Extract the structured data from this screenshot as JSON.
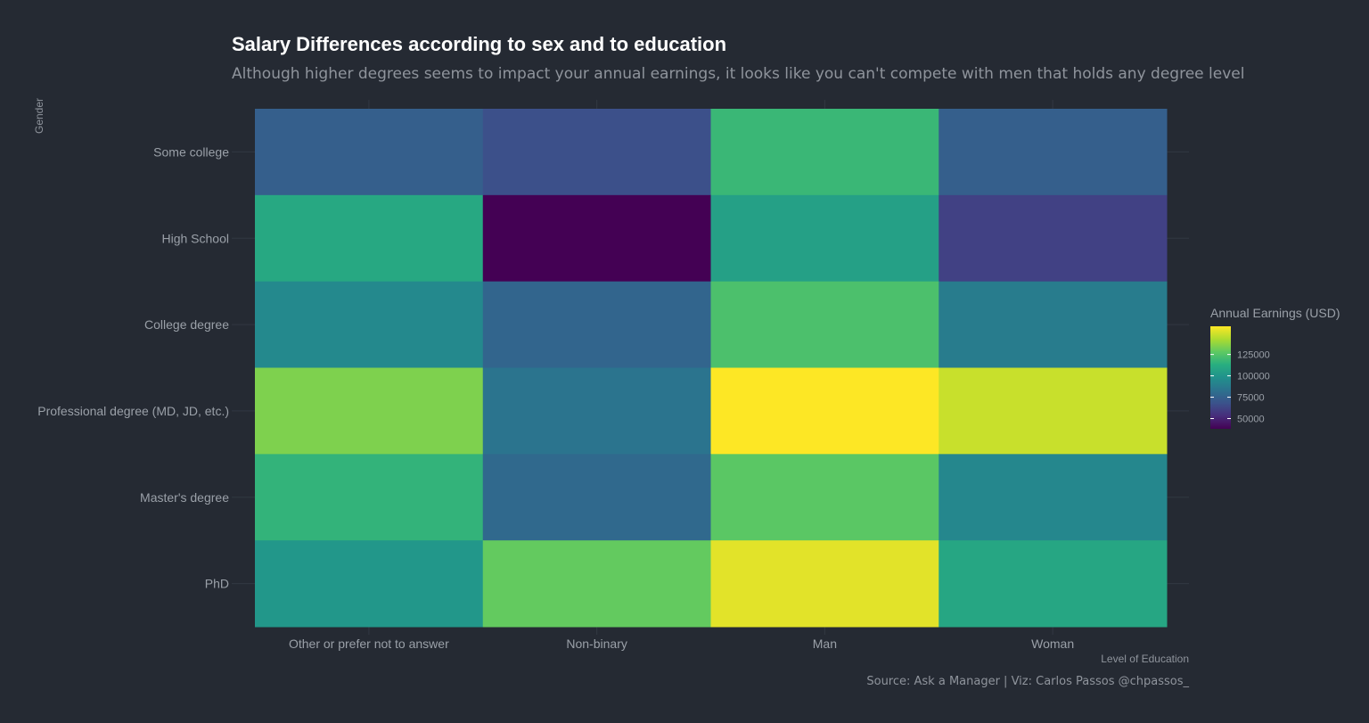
{
  "chart_data": {
    "type": "heatmap",
    "title": "Salary Differences according to sex and to education",
    "subtitle": "Although higher degrees seems to impact your annual earnings, it looks like you can't compete with men that holds any degree level",
    "xlabel": "Level of Education",
    "ylabel": "Gender",
    "x_categories": [
      "Other or prefer not to answer",
      "Non-binary",
      "Man",
      "Woman"
    ],
    "y_categories": [
      "Some college",
      "High School",
      "College degree",
      "Professional degree (MD, JD, etc.)",
      "Master's degree",
      "PhD"
    ],
    "values": [
      [
        74000,
        67000,
        118000,
        74000
      ],
      [
        110000,
        38000,
        106000,
        61000
      ],
      [
        94000,
        77000,
        123000,
        88000
      ],
      [
        134000,
        84000,
        158000,
        148000
      ],
      [
        116000,
        79000,
        127000,
        93000
      ],
      [
        101000,
        129000,
        153000,
        109000
      ]
    ],
    "colorbar": {
      "title": "Annual Earnings (USD)",
      "min": 38000,
      "max": 158000,
      "ticks": [
        50000,
        75000,
        100000,
        125000
      ],
      "tick_labels": [
        "50000",
        "75000",
        "100000",
        "125000"
      ],
      "palette": "viridis"
    },
    "legend_position": "right",
    "caption": "Source: Ask a Manager |  Viz: Carlos Passos @chpassos_"
  }
}
